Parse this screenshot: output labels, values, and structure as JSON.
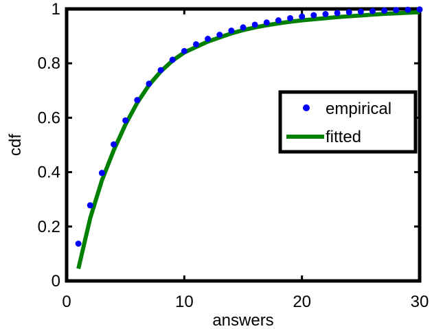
{
  "chart_data": {
    "type": "line",
    "title": "",
    "xlabel": "answers",
    "ylabel": "cdf",
    "xlim": [
      0,
      30
    ],
    "ylim": [
      0,
      1
    ],
    "xticks": [
      0,
      10,
      20,
      30
    ],
    "xtick_labels": [
      "0",
      "10",
      "20",
      "30"
    ],
    "yticks": [
      0,
      0.2,
      0.4,
      0.6,
      0.8,
      1
    ],
    "ytick_labels": [
      "0",
      "0.2",
      "0.4",
      "0.6",
      "0.8",
      "1"
    ],
    "grid": false,
    "legend_position": "center-right",
    "series": [
      {
        "name": "empirical",
        "style": "markers",
        "color": "#0000ff",
        "x": [
          1,
          2,
          3,
          4,
          5,
          6,
          7,
          8,
          9,
          10,
          11,
          12,
          13,
          14,
          15,
          16,
          17,
          18,
          19,
          20,
          21,
          22,
          23,
          24,
          25,
          26,
          27,
          28,
          29,
          30
        ],
        "y": [
          0.137,
          0.278,
          0.397,
          0.502,
          0.59,
          0.665,
          0.725,
          0.775,
          0.813,
          0.845,
          0.87,
          0.89,
          0.905,
          0.92,
          0.932,
          0.942,
          0.95,
          0.958,
          0.966,
          0.972,
          0.977,
          0.981,
          0.985,
          0.988,
          0.99,
          0.992,
          0.994,
          0.996,
          0.997,
          0.998
        ]
      },
      {
        "name": "fitted",
        "style": "line",
        "color": "#008000",
        "x": [
          1,
          2,
          3,
          4,
          5,
          6,
          7,
          8,
          9,
          10,
          11,
          12,
          13,
          14,
          15,
          16,
          17,
          18,
          19,
          20,
          21,
          22,
          23,
          24,
          25,
          26,
          27,
          28,
          29,
          30
        ],
        "y": [
          0.045,
          0.23,
          0.37,
          0.48,
          0.575,
          0.655,
          0.72,
          0.77,
          0.81,
          0.84,
          0.86,
          0.88,
          0.895,
          0.91,
          0.922,
          0.932,
          0.94,
          0.947,
          0.953,
          0.958,
          0.962,
          0.966,
          0.97,
          0.973,
          0.976,
          0.979,
          0.982,
          0.984,
          0.986,
          0.988
        ]
      }
    ]
  }
}
